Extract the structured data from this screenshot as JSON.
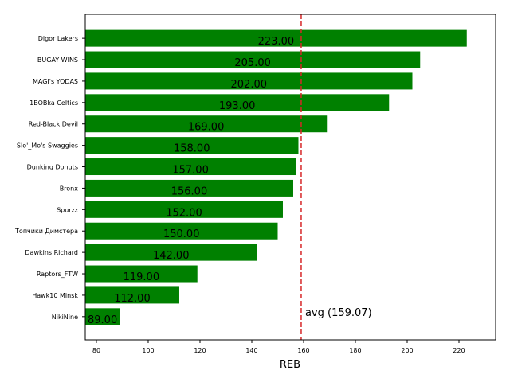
{
  "chart_data": {
    "type": "bar",
    "orientation": "horizontal",
    "xlabel": "REB",
    "categories": [
      "Digor Lakers",
      "BUGAY WINS",
      "MAGI's YODAS",
      "1BOBka Celtics",
      "Red-Black Devil",
      "Slo'_Mo's Swaggies",
      "Dunking Donuts",
      "Bronx",
      "Spurzz",
      "Топчики Димстера",
      "Dawkins Richard",
      "Raptors_FTW",
      "Hawk10 Minsk",
      "NikiNine"
    ],
    "values": [
      223,
      205,
      202,
      193,
      169,
      158,
      157,
      156,
      152,
      150,
      142,
      119,
      112,
      89
    ],
    "value_labels": [
      "223.00",
      "205.00",
      "202.00",
      "193.00",
      "169.00",
      "158.00",
      "157.00",
      "156.00",
      "152.00",
      "150.00",
      "142.00",
      "119.00",
      "112.00",
      "89.00"
    ],
    "color": "#008000",
    "xlim": [
      75.7,
      234.15
    ],
    "xticks": [
      80,
      100,
      120,
      140,
      160,
      180,
      200,
      220
    ],
    "avg_line": {
      "value": 159.07,
      "label": "avg (159.07)",
      "color": "#d62728"
    }
  }
}
